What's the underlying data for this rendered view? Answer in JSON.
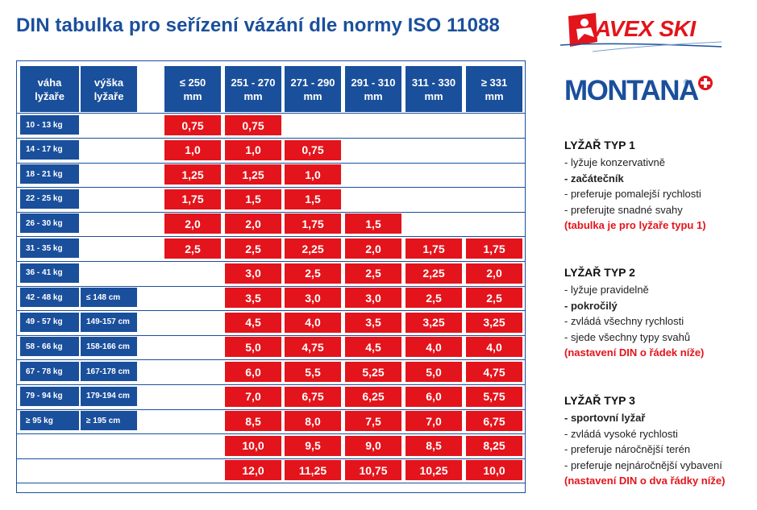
{
  "title": "DIN tabulka pro seřízení vázání dle normy ISO 11088",
  "logos": {
    "avex": "AVEX SKI",
    "montana": "MONTANA",
    "montana_reg": "®"
  },
  "header": {
    "weight": [
      "váha",
      "lyžaře"
    ],
    "height": [
      "výška",
      "lyžaře"
    ],
    "soles": [
      [
        "≤ 250",
        "mm"
      ],
      [
        "251 - 270",
        "mm"
      ],
      [
        "271 - 290",
        "mm"
      ],
      [
        "291 - 310",
        "mm"
      ],
      [
        "311 - 330",
        "mm"
      ],
      [
        "≥ 331",
        "mm"
      ]
    ]
  },
  "rows": [
    {
      "weight": "10 - 13 kg",
      "height": "",
      "start": 0,
      "values": [
        "0,75",
        "0,75"
      ]
    },
    {
      "weight": "14 - 17 kg",
      "height": "",
      "start": 0,
      "values": [
        "1,0",
        "1,0",
        "0,75"
      ]
    },
    {
      "weight": "18 - 21 kg",
      "height": "",
      "start": 0,
      "values": [
        "1,25",
        "1,25",
        "1,0"
      ]
    },
    {
      "weight": "22 - 25 kg",
      "height": "",
      "start": 0,
      "values": [
        "1,75",
        "1,5",
        "1,5"
      ]
    },
    {
      "weight": "26 - 30 kg",
      "height": "",
      "start": 0,
      "values": [
        "2,0",
        "2,0",
        "1,75",
        "1,5"
      ]
    },
    {
      "weight": "31 - 35 kg",
      "height": "",
      "start": 0,
      "values": [
        "2,5",
        "2,5",
        "2,25",
        "2,0",
        "1,75",
        "1,75"
      ]
    },
    {
      "weight": "36 - 41 kg",
      "height": "",
      "start": 1,
      "values": [
        "3,0",
        "2,5",
        "2,5",
        "2,25",
        "2,0"
      ]
    },
    {
      "weight": "42 - 48 kg",
      "height": "≤ 148 cm",
      "start": 1,
      "values": [
        "3,5",
        "3,0",
        "3,0",
        "2,5",
        "2,5"
      ]
    },
    {
      "weight": "49 - 57 kg",
      "height": "149-157 cm",
      "start": 1,
      "values": [
        "4,5",
        "4,0",
        "3,5",
        "3,25",
        "3,25"
      ]
    },
    {
      "weight": "58 - 66 kg",
      "height": "158-166 cm",
      "start": 1,
      "values": [
        "5,0",
        "4,75",
        "4,5",
        "4,0",
        "4,0"
      ]
    },
    {
      "weight": "67 - 78 kg",
      "height": "167-178 cm",
      "start": 1,
      "values": [
        "6,0",
        "5,5",
        "5,25",
        "5,0",
        "4,75"
      ]
    },
    {
      "weight": "79 - 94 kg",
      "height": "179-194 cm",
      "start": 1,
      "values": [
        "7,0",
        "6,75",
        "6,25",
        "6,0",
        "5,75"
      ]
    },
    {
      "weight": "≥ 95 kg",
      "height": "≥ 195 cm",
      "start": 1,
      "values": [
        "8,5",
        "8,0",
        "7,5",
        "7,0",
        "6,75"
      ]
    },
    {
      "weight": "",
      "height": "",
      "start": 1,
      "values": [
        "10,0",
        "9,5",
        "9,0",
        "8,5",
        "8,25"
      ]
    },
    {
      "weight": "",
      "height": "",
      "start": 1,
      "values": [
        "12,0",
        "11,25",
        "10,75",
        "10,25",
        "10,0"
      ]
    }
  ],
  "legend": [
    {
      "title": "LYŽAŘ TYP 1",
      "items": [
        {
          "text": "- lyžuje konzervativně",
          "style": ""
        },
        {
          "text": "- začátečník",
          "style": "b"
        },
        {
          "text": "- preferuje pomalejší rychlosti",
          "style": ""
        },
        {
          "text": "- preferujte snadné svahy",
          "style": ""
        },
        {
          "text": "(tabulka je pro lyžaře typu 1)",
          "style": "r"
        }
      ]
    },
    {
      "title": "LYŽAŘ TYP 2",
      "items": [
        {
          "text": "- lyžuje pravidelně",
          "style": ""
        },
        {
          "text": "- pokročilý",
          "style": "b"
        },
        {
          "text": "- zvládá všechny rychlosti",
          "style": ""
        },
        {
          "text": "- sjede všechny typy svahů",
          "style": ""
        },
        {
          "text": "(nastavení DIN o řádek níže)",
          "style": "r"
        }
      ]
    },
    {
      "title": "LYŽAŘ TYP 3",
      "items": [
        {
          "text": "- sportovní lyžař",
          "style": "b"
        },
        {
          "text": "- zvládá vysoké rychlosti",
          "style": ""
        },
        {
          "text": "- preferuje náročnější terén",
          "style": ""
        },
        {
          "text": "- preferuje nejnáročnější vybavení",
          "style": ""
        },
        {
          "text": "(nastavení DIN o dva řádky níže)",
          "style": "r"
        }
      ]
    }
  ],
  "colors": {
    "blue": "#1a4f9c",
    "red": "#e3141b"
  }
}
